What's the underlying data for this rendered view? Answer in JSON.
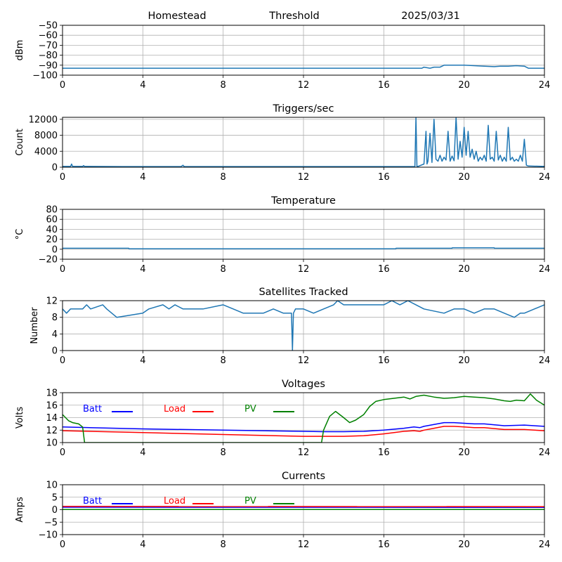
{
  "header": {
    "station": "Homestead",
    "mode": "Threshold",
    "date": "2025/03/31"
  },
  "chart_data": [
    {
      "type": "line",
      "title": "",
      "xlabel": "",
      "ylabel": "dBm",
      "xlim": [
        0,
        24
      ],
      "ylim": [
        -100,
        -50
      ],
      "xticks": [
        "0",
        "4",
        "8",
        "12",
        "16",
        "20",
        "24"
      ],
      "yticks": [
        "−100",
        "−90",
        "−80",
        "−70",
        "−60",
        "−50"
      ],
      "grid": true,
      "series": [
        {
          "color": "#1f77b4",
          "x": [
            0,
            17.9,
            18.0,
            18.3,
            18.5,
            18.8,
            19.0,
            19.5,
            20.0,
            20.5,
            21.0,
            21.5,
            21.8,
            22.2,
            22.6,
            23.0,
            23.2,
            24
          ],
          "y": [
            -93,
            -93,
            -92,
            -93,
            -92,
            -92,
            -90,
            -90,
            -90,
            -90.5,
            -91,
            -91.5,
            -91,
            -91,
            -90.5,
            -91,
            -93,
            -93
          ]
        }
      ]
    },
    {
      "type": "line",
      "title": "Triggers/sec",
      "xlabel": "",
      "ylabel": "Count",
      "xlim": [
        0,
        24
      ],
      "ylim": [
        0,
        12500
      ],
      "xticks": [
        "0",
        "4",
        "8",
        "12",
        "16",
        "20",
        "24"
      ],
      "yticks": [
        "0",
        "4000",
        "8000",
        "12000"
      ],
      "grid": true,
      "series": [
        {
          "color": "#1f77b4",
          "x": [
            0,
            0.4,
            0.45,
            0.5,
            1.0,
            1.05,
            1.1,
            3.0,
            5.9,
            6.0,
            6.05,
            6.1,
            17.5,
            17.55,
            17.6,
            17.65,
            17.7,
            18.0,
            18.1,
            18.15,
            18.2,
            18.3,
            18.4,
            18.5,
            18.6,
            18.7,
            18.8,
            18.9,
            19.0,
            19.1,
            19.2,
            19.3,
            19.4,
            19.5,
            19.6,
            19.7,
            19.8,
            19.9,
            20.0,
            20.1,
            20.2,
            20.3,
            20.4,
            20.5,
            20.6,
            20.7,
            20.8,
            20.9,
            21.0,
            21.1,
            21.2,
            21.3,
            21.4,
            21.5,
            21.6,
            21.7,
            21.8,
            21.9,
            22.0,
            22.1,
            22.2,
            22.3,
            22.4,
            22.5,
            22.6,
            22.7,
            22.8,
            22.9,
            23.0,
            23.1,
            23.2,
            24
          ],
          "y": [
            200,
            200,
            800,
            200,
            200,
            400,
            200,
            150,
            150,
            500,
            200,
            150,
            150,
            150,
            12500,
            200,
            200,
            800,
            9000,
            800,
            1500,
            8500,
            1200,
            12000,
            2000,
            1500,
            3000,
            1500,
            2500,
            1800,
            9000,
            1500,
            2800,
            1600,
            12500,
            2000,
            6500,
            2500,
            10000,
            3000,
            9000,
            2500,
            4500,
            2000,
            4000,
            1500,
            2500,
            1800,
            3000,
            1500,
            10500,
            2000,
            2500,
            1500,
            9000,
            1800,
            3000,
            1500,
            2500,
            1500,
            10000,
            1800,
            2500,
            1500,
            2000,
            1500,
            3000,
            1500,
            7000,
            500,
            300,
            200
          ]
        }
      ]
    },
    {
      "type": "line",
      "title": "Temperature",
      "xlabel": "",
      "ylabel": "°C",
      "xlim": [
        0,
        24
      ],
      "ylim": [
        -20,
        80
      ],
      "xticks": [
        "0",
        "4",
        "8",
        "12",
        "16",
        "20",
        "24"
      ],
      "yticks": [
        "−20",
        "0",
        "20",
        "40",
        "60",
        "80"
      ],
      "grid": true,
      "series": [
        {
          "color": "#1f77b4",
          "x": [
            0,
            3.3,
            3.31,
            16.6,
            16.61,
            19.4,
            19.41,
            21.5,
            21.51,
            24
          ],
          "y": [
            2,
            2,
            1,
            1,
            2,
            2,
            3,
            3,
            2,
            2
          ]
        }
      ]
    },
    {
      "type": "line",
      "title": "Satellites Tracked",
      "xlabel": "",
      "ylabel": "Number",
      "xlim": [
        0,
        24
      ],
      "ylim": [
        0,
        12
      ],
      "xticks": [
        "0",
        "4",
        "8",
        "12",
        "16",
        "20",
        "24"
      ],
      "yticks": [
        "0",
        "4",
        "8",
        "12"
      ],
      "grid": true,
      "series": [
        {
          "color": "#1f77b4",
          "x": [
            0,
            0.2,
            0.4,
            1.0,
            1.2,
            1.4,
            2.0,
            2.2,
            2.7,
            4.0,
            4.3,
            5.0,
            5.3,
            5.6,
            6.0,
            7.0,
            8.0,
            8.5,
            9.0,
            10.0,
            10.5,
            11.0,
            11.4,
            11.45,
            11.5,
            11.6,
            12.0,
            12.5,
            13.0,
            13.5,
            13.7,
            14.0,
            15.0,
            16.0,
            16.4,
            16.8,
            17.2,
            17.6,
            18.0,
            19.0,
            19.5,
            20.0,
            20.5,
            21.0,
            21.5,
            22.0,
            22.5,
            22.8,
            23.0,
            23.5,
            24
          ],
          "y": [
            10,
            9,
            10,
            10,
            11,
            10,
            11,
            10,
            8,
            9,
            10,
            11,
            10,
            11,
            10,
            10,
            11,
            10,
            9,
            9,
            10,
            9,
            9,
            0,
            9,
            10,
            10,
            9,
            10,
            11,
            12,
            11,
            11,
            11,
            12,
            11,
            12,
            11,
            10,
            9,
            10,
            10,
            9,
            10,
            10,
            9,
            8,
            9,
            9,
            10,
            11
          ]
        }
      ]
    },
    {
      "type": "line",
      "title": "Voltages",
      "xlabel": "",
      "ylabel": "Volts",
      "xlim": [
        0,
        24
      ],
      "ylim": [
        10,
        18
      ],
      "xticks": [
        "0",
        "4",
        "8",
        "12",
        "16",
        "20",
        "24"
      ],
      "yticks": [
        "10",
        "12",
        "14",
        "16",
        "18"
      ],
      "grid": true,
      "legend": "top-left",
      "series": [
        {
          "name": "Batt",
          "color": "#0000ff",
          "x": [
            0,
            4,
            8,
            12,
            13,
            14,
            15,
            16,
            17,
            17.5,
            17.8,
            18,
            18.5,
            19,
            19.5,
            20,
            20.5,
            21,
            22,
            23,
            23.5,
            24
          ],
          "y": [
            12.5,
            12.2,
            12.0,
            11.8,
            11.75,
            11.75,
            11.8,
            12.0,
            12.3,
            12.5,
            12.4,
            12.6,
            12.9,
            13.2,
            13.2,
            13.1,
            13.0,
            13.0,
            12.7,
            12.8,
            12.7,
            12.6
          ]
        },
        {
          "name": "Load",
          "color": "#ff0000",
          "x": [
            0,
            4,
            8,
            12,
            13,
            14,
            15,
            16,
            17,
            17.5,
            17.8,
            18,
            18.5,
            19,
            19.5,
            20,
            20.5,
            21,
            22,
            23,
            23.5,
            24
          ],
          "y": [
            11.9,
            11.6,
            11.3,
            11.0,
            11.0,
            11.0,
            11.1,
            11.4,
            11.8,
            11.9,
            11.8,
            12.0,
            12.3,
            12.6,
            12.6,
            12.5,
            12.4,
            12.4,
            12.1,
            12.1,
            12.0,
            11.9
          ]
        },
        {
          "name": "PV",
          "color": "#008000",
          "x": [
            0,
            0.3,
            0.5,
            0.8,
            1.0,
            1.1,
            12.9,
            13.0,
            13.3,
            13.6,
            14.0,
            14.3,
            14.6,
            15.0,
            15.3,
            15.6,
            16.0,
            16.5,
            17.0,
            17.3,
            17.6,
            18.0,
            18.5,
            19.0,
            19.5,
            20.0,
            20.5,
            21.0,
            21.5,
            22.0,
            22.3,
            22.6,
            23.0,
            23.3,
            23.6,
            24
          ],
          "y": [
            14.5,
            13.5,
            13.2,
            13.0,
            12.5,
            10.0,
            10.0,
            12.0,
            14.2,
            15.0,
            14.0,
            13.2,
            13.6,
            14.5,
            15.8,
            16.6,
            16.9,
            17.1,
            17.3,
            17.0,
            17.4,
            17.6,
            17.3,
            17.1,
            17.2,
            17.4,
            17.3,
            17.2,
            17.0,
            16.7,
            16.6,
            16.8,
            16.7,
            17.8,
            16.8,
            16.0
          ]
        }
      ]
    },
    {
      "type": "line",
      "title": "Currents",
      "xlabel": "",
      "ylabel": "Amps",
      "xlim": [
        0,
        24
      ],
      "ylim": [
        -10,
        10
      ],
      "xticks": [
        "0",
        "4",
        "8",
        "12",
        "16",
        "20",
        "24"
      ],
      "yticks": [
        "−10",
        "−5",
        "0",
        "5",
        "10"
      ],
      "grid": true,
      "legend": "top-left",
      "series": [
        {
          "name": "Batt",
          "color": "#0000ff",
          "x": [
            0,
            24
          ],
          "y": [
            1.0,
            0.9
          ]
        },
        {
          "name": "Load",
          "color": "#ff0000",
          "x": [
            0,
            24
          ],
          "y": [
            1.3,
            1.2
          ]
        },
        {
          "name": "PV",
          "color": "#008000",
          "x": [
            0,
            24
          ],
          "y": [
            0.05,
            0.05
          ]
        }
      ]
    }
  ]
}
